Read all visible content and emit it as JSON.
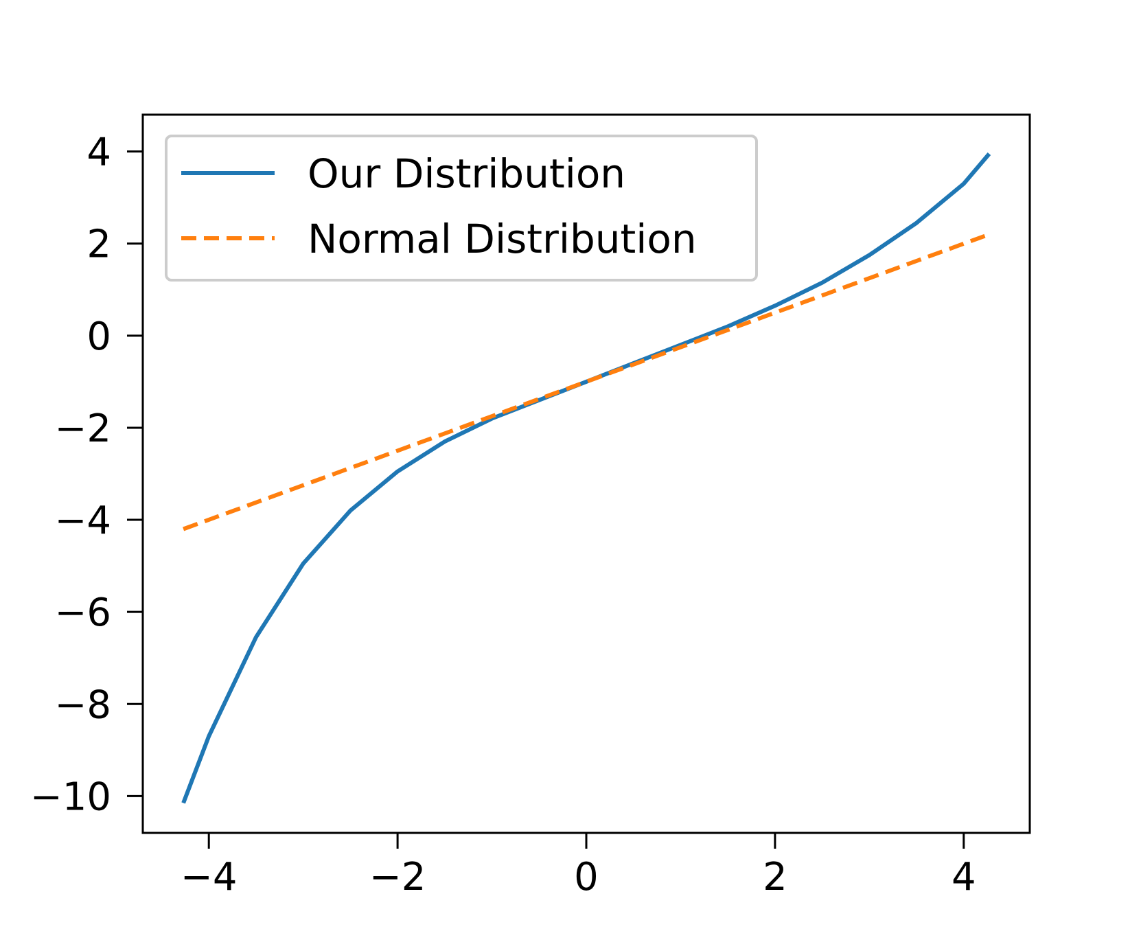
{
  "chart_data": {
    "type": "line",
    "title": "",
    "xlabel": "",
    "ylabel": "",
    "xlim": [
      -4.7,
      4.7
    ],
    "ylim": [
      -10.8,
      4.8
    ],
    "x_ticks": [
      -4,
      -2,
      0,
      2,
      4
    ],
    "x_tick_labels": [
      "−4",
      "−2",
      "0",
      "2",
      "4"
    ],
    "y_ticks": [
      4,
      2,
      0,
      -2,
      -4,
      -6,
      -8,
      -10
    ],
    "y_tick_labels": [
      "4",
      "2",
      "0",
      "−2",
      "−4",
      "−6",
      "−8",
      "−10"
    ],
    "grid": false,
    "legend_position": "top-left",
    "series": [
      {
        "name": "Our Distribution",
        "color": "#1f77b4",
        "style": "solid",
        "x": [
          -4.27,
          -4.0,
          -3.5,
          -3.0,
          -2.5,
          -2.0,
          -1.5,
          -1.0,
          -0.5,
          0.0,
          0.5,
          1.0,
          1.5,
          2.0,
          2.5,
          3.0,
          3.5,
          4.0,
          4.27
        ],
        "y": [
          -10.15,
          -8.7,
          -6.55,
          -4.95,
          -3.8,
          -2.95,
          -2.3,
          -1.8,
          -1.4,
          -1.0,
          -0.6,
          -0.2,
          0.2,
          0.65,
          1.15,
          1.75,
          2.45,
          3.3,
          3.95
        ]
      },
      {
        "name": "Normal Distribution",
        "color": "#ff7f0e",
        "style": "dashed",
        "x": [
          -4.27,
          4.27
        ],
        "y": [
          -4.2,
          2.2
        ]
      }
    ]
  }
}
